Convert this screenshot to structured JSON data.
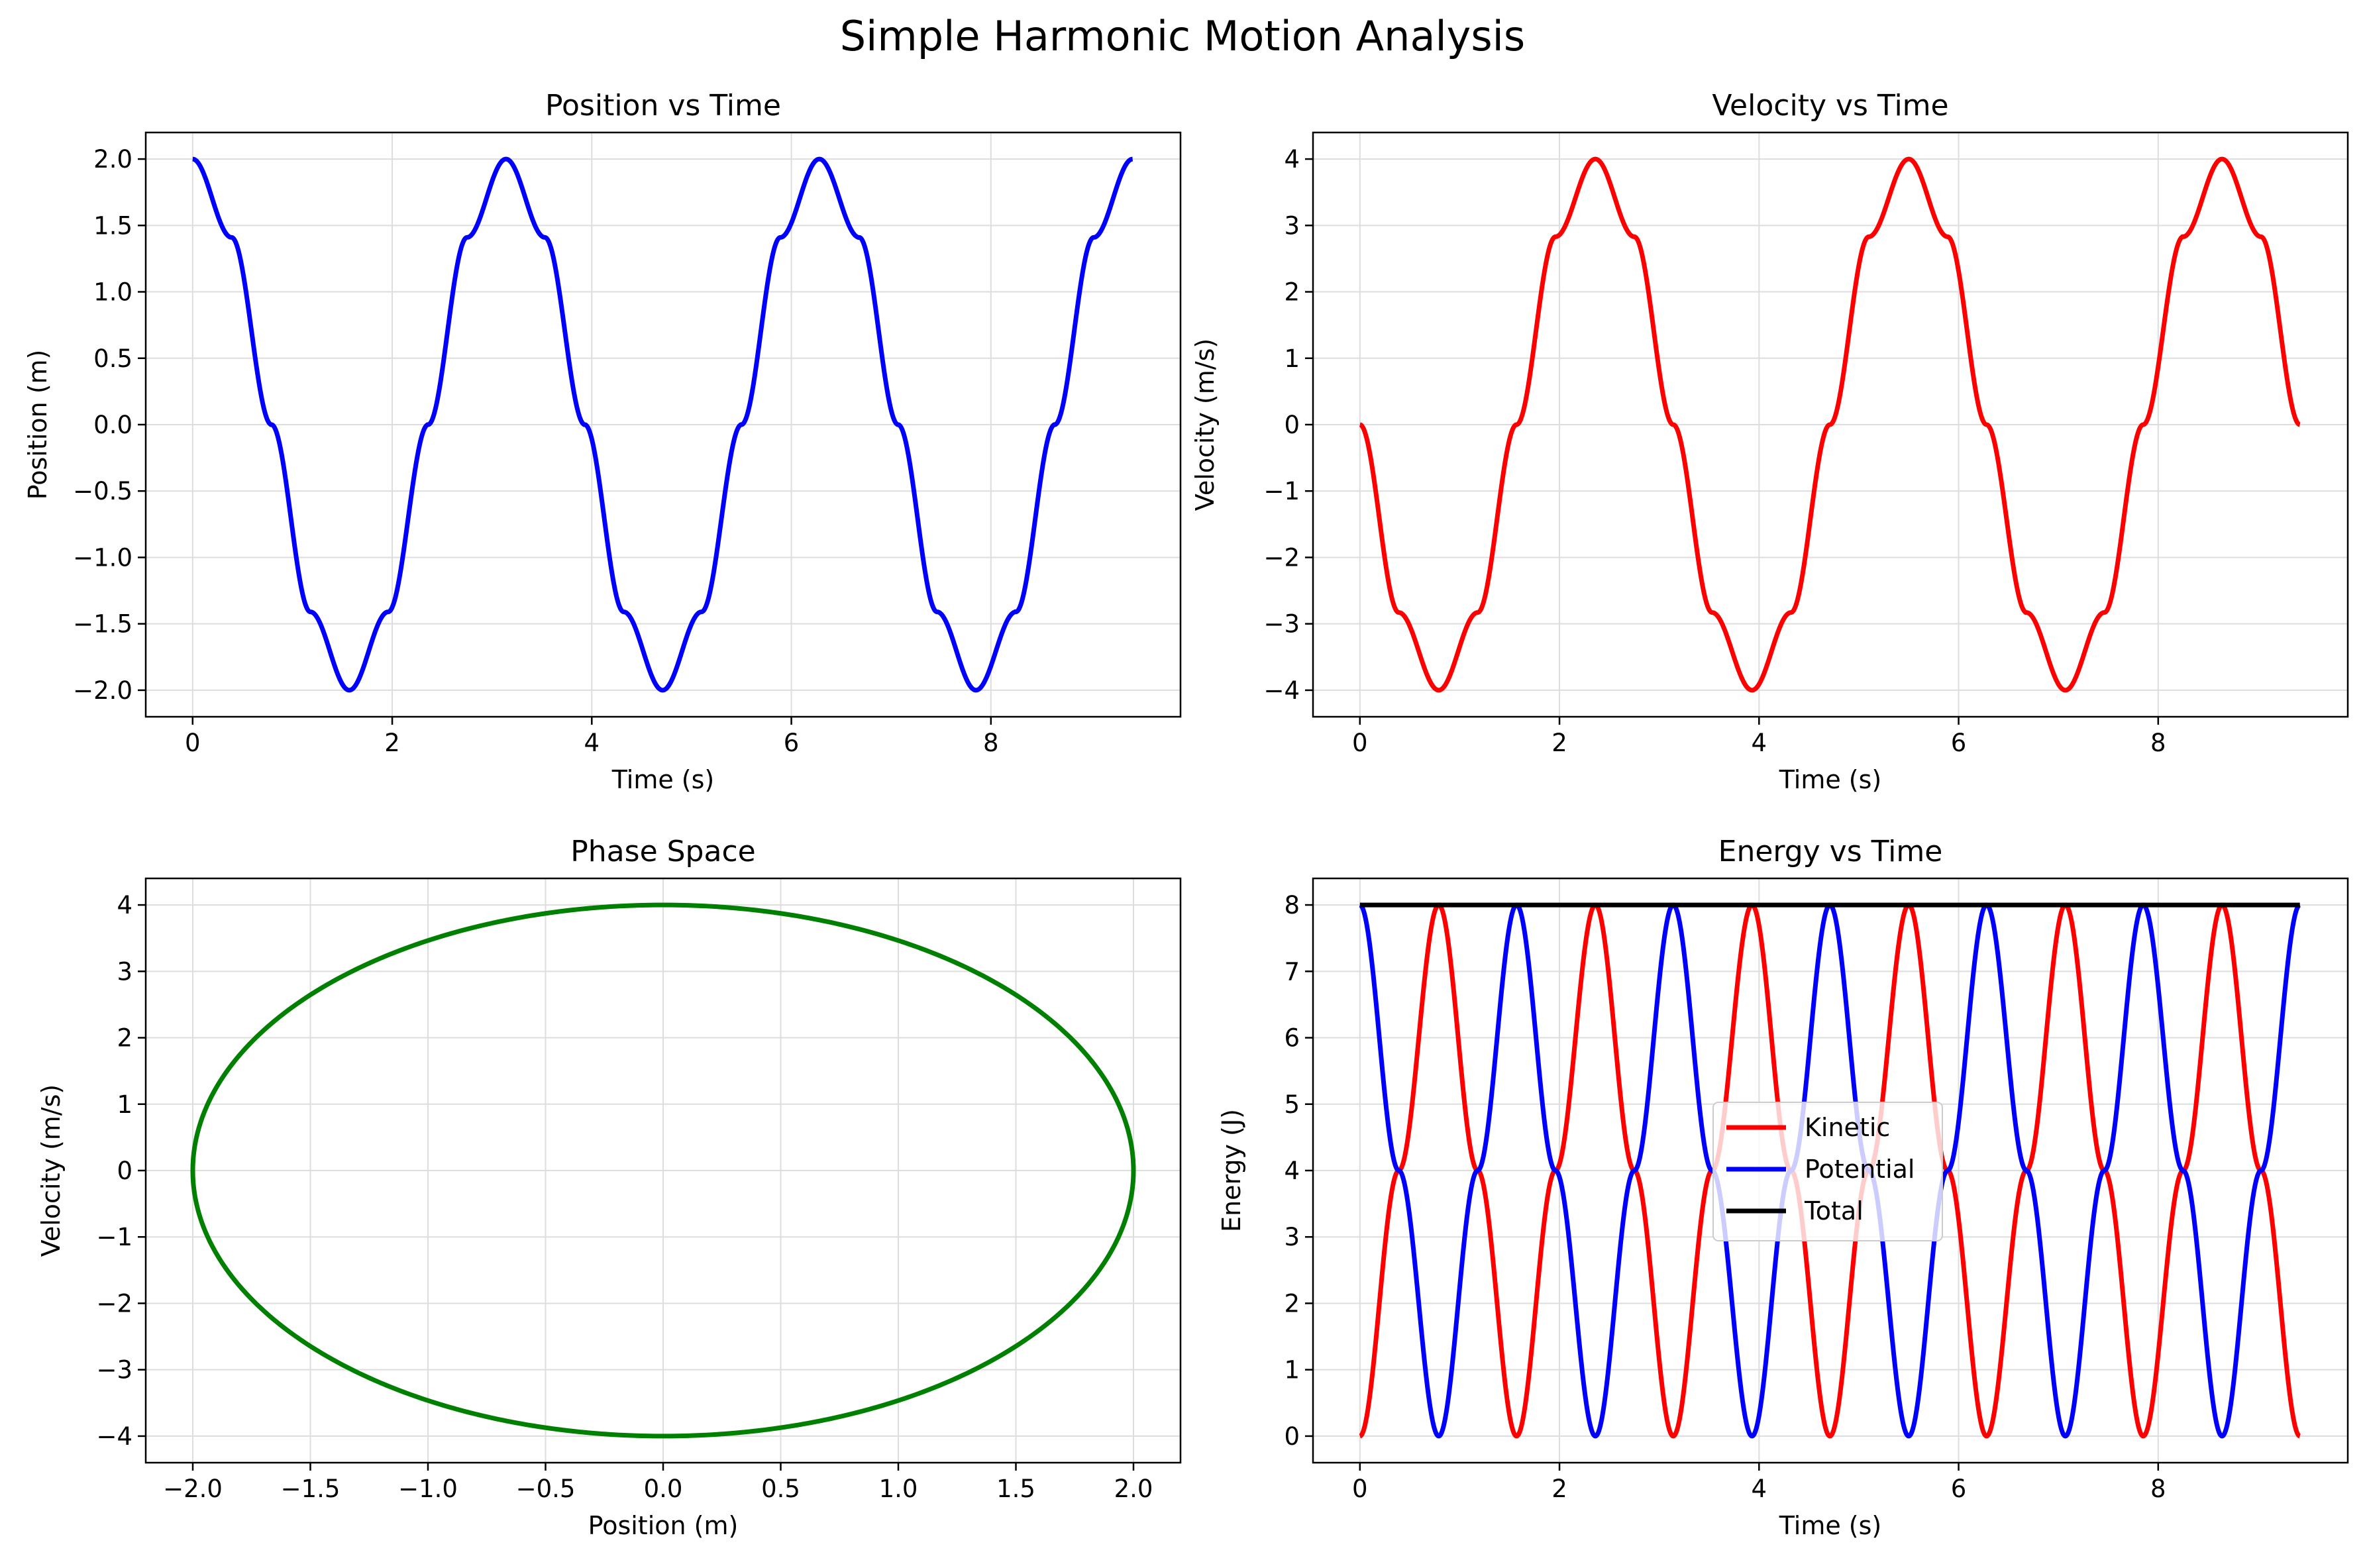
{
  "figure": {
    "title": "Simple Harmonic Motion Analysis"
  },
  "chart_data": [
    {
      "id": "position",
      "type": "line",
      "title": "Position vs Time",
      "xlabel": "Time (s)",
      "ylabel": "Position (m)",
      "xlim": [
        -0.47,
        9.9
      ],
      "ylim": [
        -2.2,
        2.2
      ],
      "xticks": [
        0,
        2,
        4,
        6,
        8
      ],
      "yticks": [
        -2.0,
        -1.5,
        -1.0,
        -0.5,
        0.0,
        0.5,
        1.0,
        1.5,
        2.0
      ],
      "xtick_labels": [
        "0",
        "2",
        "4",
        "6",
        "8"
      ],
      "ytick_labels": [
        "−2.0",
        "−1.5",
        "−1.0",
        "−0.5",
        "0.0",
        "0.5",
        "1.0",
        "1.5",
        "2.0"
      ],
      "grid": true,
      "series": [
        {
          "color": "#0000ff",
          "x": [
            0,
            0.39,
            0.79,
            1.18,
            1.57,
            1.96,
            2.36,
            2.75,
            3.14,
            3.53,
            3.93,
            4.32,
            4.71,
            5.1,
            5.5,
            5.89,
            6.28,
            6.68,
            7.07,
            7.46,
            7.85,
            8.25,
            8.64,
            9.03,
            9.42
          ],
          "y": [
            2.0,
            1.41,
            0.0,
            -1.41,
            -2.0,
            -1.41,
            0.0,
            1.41,
            2.0,
            1.41,
            0.0,
            -1.41,
            -2.0,
            -1.41,
            0.0,
            1.41,
            2.0,
            1.41,
            0.0,
            -1.41,
            -2.0,
            -1.41,
            0.0,
            1.41,
            2.0
          ]
        }
      ]
    },
    {
      "id": "velocity",
      "type": "line",
      "title": "Velocity vs Time",
      "xlabel": "Time (s)",
      "ylabel": "Velocity (m/s)",
      "xlim": [
        -0.47,
        9.9
      ],
      "ylim": [
        -4.4,
        4.4
      ],
      "xticks": [
        0,
        2,
        4,
        6,
        8
      ],
      "yticks": [
        -4,
        -3,
        -2,
        -1,
        0,
        1,
        2,
        3,
        4
      ],
      "xtick_labels": [
        "0",
        "2",
        "4",
        "6",
        "8"
      ],
      "ytick_labels": [
        "−4",
        "−3",
        "−2",
        "−1",
        "0",
        "1",
        "2",
        "3",
        "4"
      ],
      "grid": true,
      "series": [
        {
          "color": "#ff0000",
          "x": [
            0,
            0.39,
            0.79,
            1.18,
            1.57,
            1.96,
            2.36,
            2.75,
            3.14,
            3.53,
            3.93,
            4.32,
            4.71,
            5.1,
            5.5,
            5.89,
            6.28,
            6.68,
            7.07,
            7.46,
            7.85,
            8.25,
            8.64,
            9.03,
            9.42
          ],
          "y": [
            0.0,
            -2.83,
            -4.0,
            -2.83,
            0.0,
            2.83,
            4.0,
            2.83,
            0.0,
            -2.83,
            -4.0,
            -2.83,
            0.0,
            2.83,
            4.0,
            2.83,
            0.0,
            -2.83,
            -4.0,
            -2.83,
            0.0,
            2.83,
            4.0,
            2.83,
            0.0
          ]
        }
      ]
    },
    {
      "id": "phase",
      "type": "line",
      "title": "Phase Space",
      "xlabel": "Position (m)",
      "ylabel": "Velocity (m/s)",
      "xlim": [
        -2.2,
        2.2
      ],
      "ylim": [
        -4.4,
        4.4
      ],
      "xticks": [
        -2.0,
        -1.5,
        -1.0,
        -0.5,
        0.0,
        0.5,
        1.0,
        1.5,
        2.0
      ],
      "yticks": [
        -4,
        -3,
        -2,
        -1,
        0,
        1,
        2,
        3,
        4
      ],
      "xtick_labels": [
        "−2.0",
        "−1.5",
        "−1.0",
        "−0.5",
        "0.0",
        "0.5",
        "1.0",
        "1.5",
        "2.0"
      ],
      "ytick_labels": [
        "−4",
        "−3",
        "−2",
        "−1",
        "0",
        "1",
        "2",
        "3",
        "4"
      ],
      "grid": true,
      "series": [
        {
          "color": "#008000",
          "x": [
            2.0,
            1.85,
            1.41,
            0.77,
            0.0,
            -0.77,
            -1.41,
            -1.85,
            -2.0,
            -1.85,
            -1.41,
            -0.77,
            0.0,
            0.77,
            1.41,
            1.85,
            2.0
          ],
          "y": [
            0.0,
            -1.53,
            -2.83,
            -3.7,
            -4.0,
            -3.7,
            -2.83,
            -1.53,
            0.0,
            1.53,
            2.83,
            3.7,
            4.0,
            3.7,
            2.83,
            1.53,
            0.0
          ]
        }
      ]
    },
    {
      "id": "energy",
      "type": "line",
      "title": "Energy vs Time",
      "xlabel": "Time (s)",
      "ylabel": "Energy (J)",
      "xlim": [
        -0.47,
        9.9
      ],
      "ylim": [
        -0.4,
        8.4
      ],
      "xticks": [
        0,
        2,
        4,
        6,
        8
      ],
      "yticks": [
        0,
        1,
        2,
        3,
        4,
        5,
        6,
        7,
        8
      ],
      "xtick_labels": [
        "0",
        "2",
        "4",
        "6",
        "8"
      ],
      "ytick_labels": [
        "0",
        "1",
        "2",
        "3",
        "4",
        "5",
        "6",
        "7",
        "8"
      ],
      "grid": true,
      "legend": "center",
      "series": [
        {
          "name": "Kinetic",
          "color": "#ff0000",
          "x": [
            0,
            0.39,
            0.79,
            1.18,
            1.57,
            1.96,
            2.36,
            2.75,
            3.14,
            3.53,
            3.93,
            4.32,
            4.71,
            5.1,
            5.5,
            5.89,
            6.28,
            6.68,
            7.07,
            7.46,
            7.85,
            8.25,
            8.64,
            9.03,
            9.42
          ],
          "y": [
            0.0,
            4.0,
            8.0,
            4.0,
            0.0,
            4.0,
            8.0,
            4.0,
            0.0,
            4.0,
            8.0,
            4.0,
            0.0,
            4.0,
            8.0,
            4.0,
            0.0,
            4.0,
            8.0,
            4.0,
            0.0,
            4.0,
            8.0,
            4.0,
            0.0
          ]
        },
        {
          "name": "Potential",
          "color": "#0000ff",
          "x": [
            0,
            0.39,
            0.79,
            1.18,
            1.57,
            1.96,
            2.36,
            2.75,
            3.14,
            3.53,
            3.93,
            4.32,
            4.71,
            5.1,
            5.5,
            5.89,
            6.28,
            6.68,
            7.07,
            7.46,
            7.85,
            8.25,
            8.64,
            9.03,
            9.42
          ],
          "y": [
            8.0,
            4.0,
            0.0,
            4.0,
            8.0,
            4.0,
            0.0,
            4.0,
            8.0,
            4.0,
            0.0,
            4.0,
            8.0,
            4.0,
            0.0,
            4.0,
            8.0,
            4.0,
            0.0,
            4.0,
            8.0,
            4.0,
            0.0,
            4.0,
            8.0
          ]
        },
        {
          "name": "Total",
          "color": "#000000",
          "x": [
            0,
            9.42
          ],
          "y": [
            8.0,
            8.0
          ]
        }
      ]
    }
  ]
}
